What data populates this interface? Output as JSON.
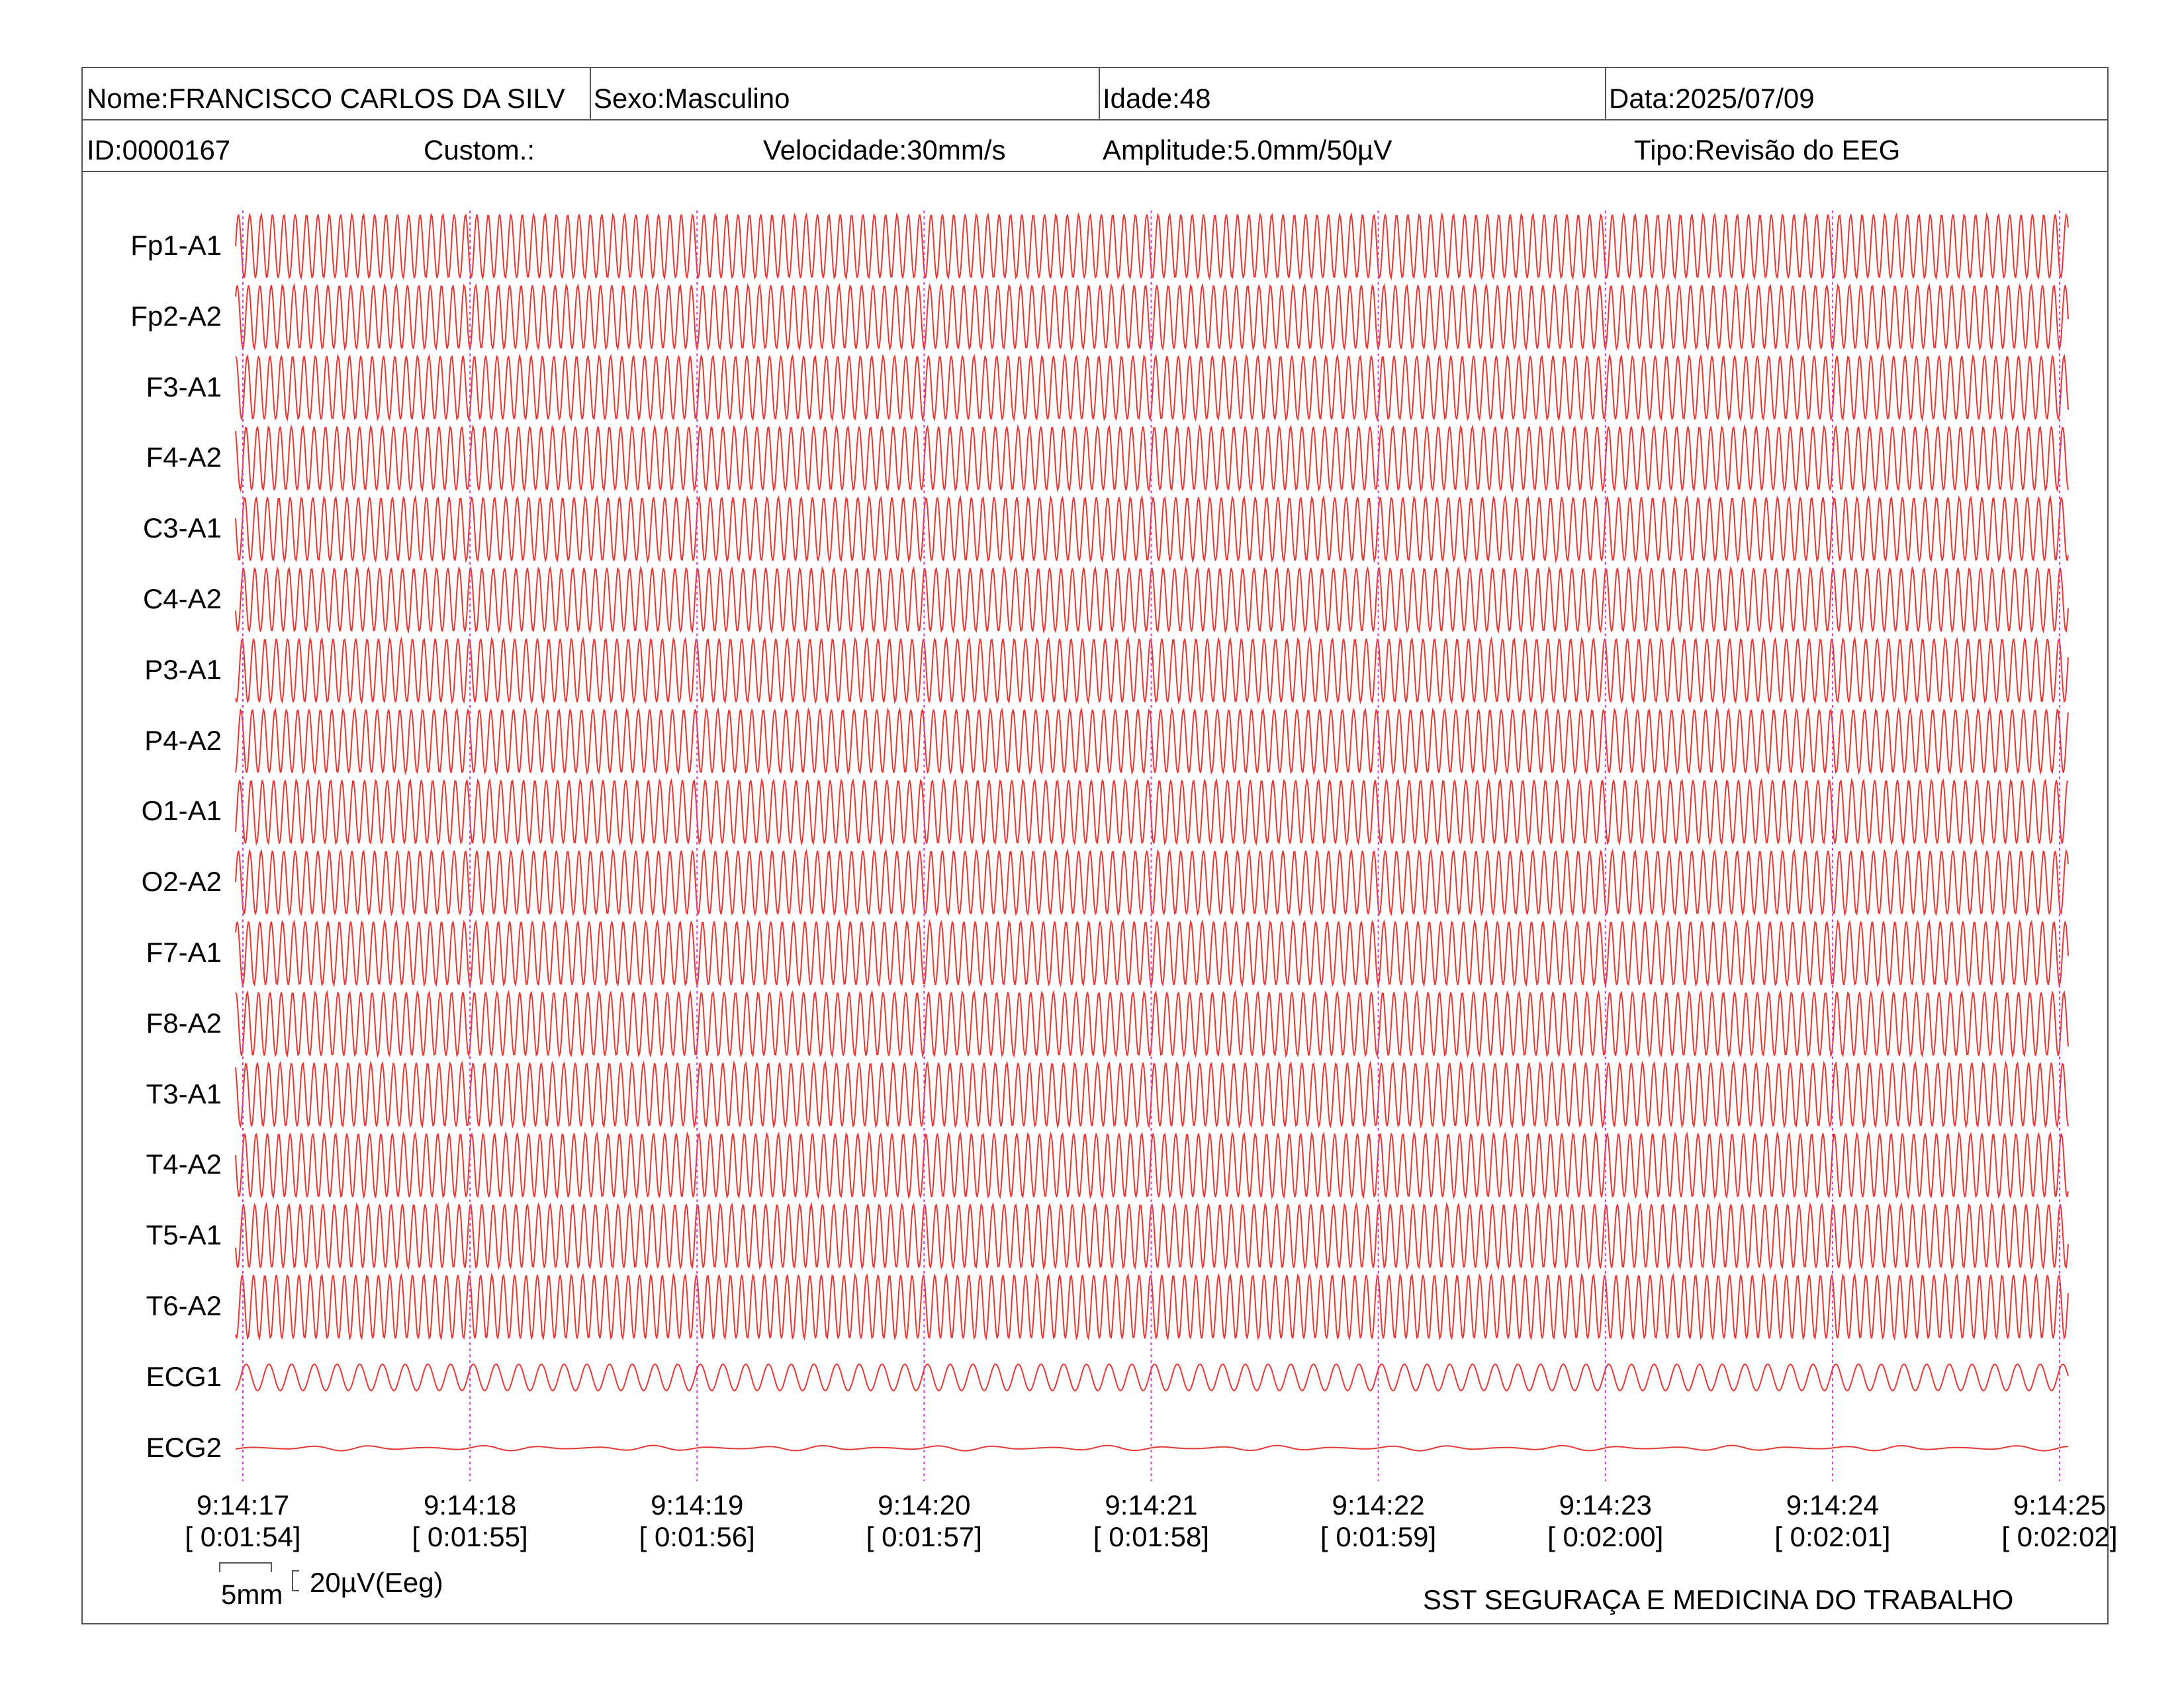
{
  "header": {
    "nome": "Nome:FRANCISCO CARLOS DA SILV",
    "sexo": "Sexo:Masculino",
    "idade": "Idade:48",
    "data": "Data:2025/07/09",
    "id": "ID:0000167",
    "custom": "Custom.:",
    "velocidade": "Velocidade:30mm/s",
    "amplitude": "Amplitude:5.0mm/50µV",
    "tipo": "Tipo:Revisão do EEG"
  },
  "colors": {
    "trace": "#e53935",
    "marker": "#d63bd6",
    "border": "#555555"
  },
  "chart_data": {
    "type": "line",
    "channels": [
      "Fp1-A1",
      "Fp2-A2",
      "F3-A1",
      "F4-A2",
      "C3-A1",
      "C4-A2",
      "P3-A1",
      "P4-A2",
      "O1-A1",
      "O2-A2",
      "F7-A1",
      "F8-A2",
      "T3-A1",
      "T4-A2",
      "T5-A1",
      "T6-A2",
      "ECG1",
      "ECG2"
    ],
    "time_ticks": [
      {
        "clock": "9:14:17",
        "elapsed": "[ 0:01:54]"
      },
      {
        "clock": "9:14:18",
        "elapsed": "[ 0:01:55]"
      },
      {
        "clock": "9:14:19",
        "elapsed": "[ 0:01:56]"
      },
      {
        "clock": "9:14:20",
        "elapsed": "[ 0:01:57]"
      },
      {
        "clock": "9:14:21",
        "elapsed": "[ 0:01:58]"
      },
      {
        "clock": "9:14:22",
        "elapsed": "[ 0:01:59]"
      },
      {
        "clock": "9:14:23",
        "elapsed": "[ 0:02:00]"
      },
      {
        "clock": "9:14:24",
        "elapsed": "[ 0:02:01]"
      },
      {
        "clock": "9:14:25",
        "elapsed": "[ 0:02:02]"
      }
    ],
    "cycles_per_second": {
      "eeg": 20,
      "ecg1": 10,
      "ecg2": 4
    },
    "grid": false
  },
  "footer": {
    "scale_time": "5mm",
    "scale_amplitude": "20µV(Eeg)",
    "company": "SST SEGURAÇA E MEDICINA DO TRABALHO"
  }
}
